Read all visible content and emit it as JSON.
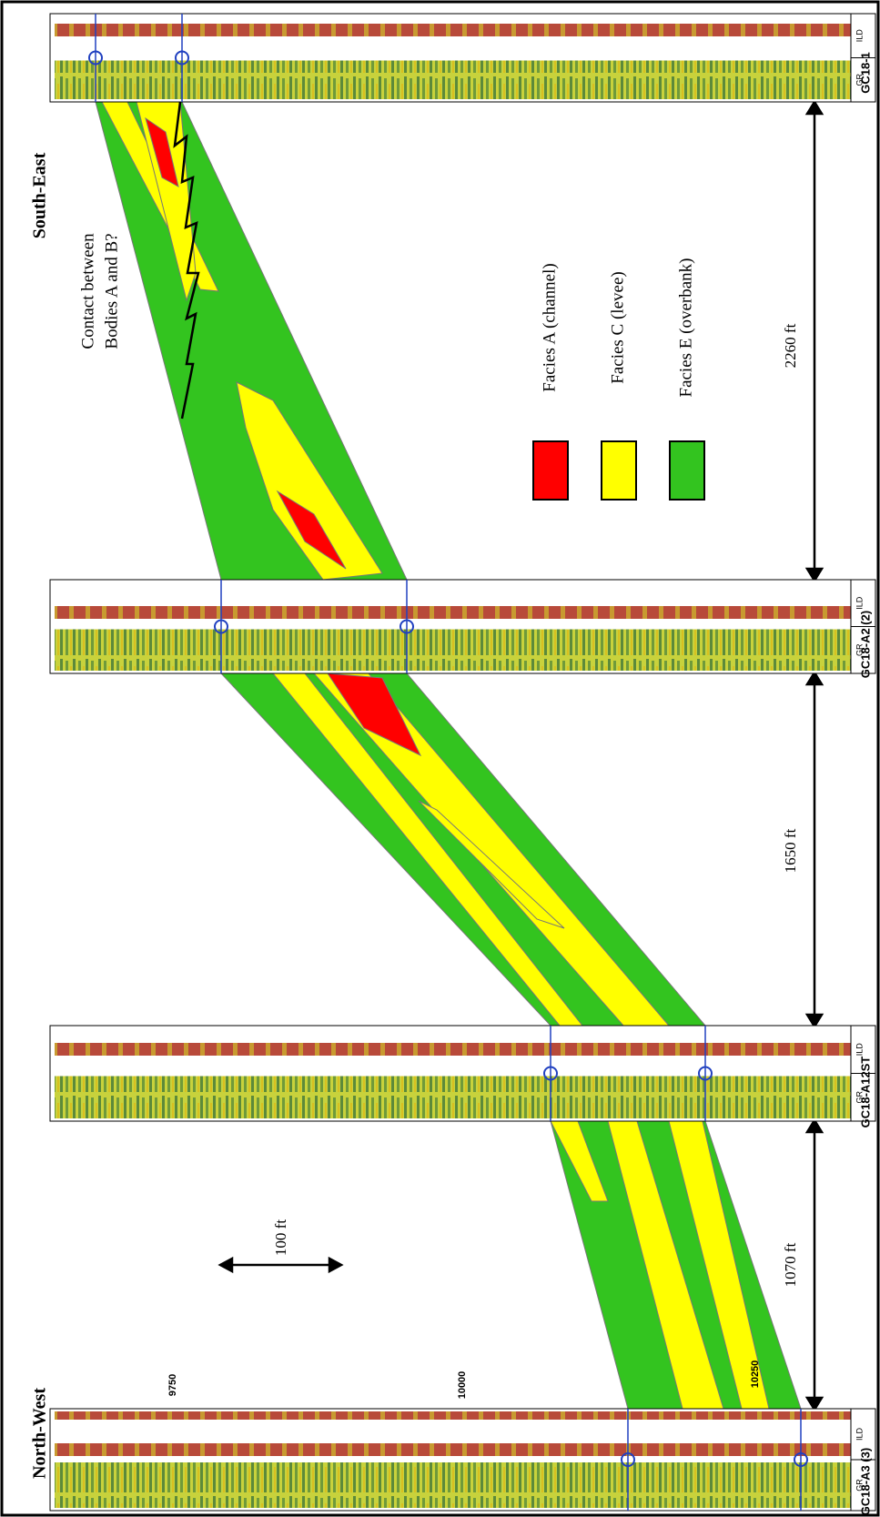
{
  "wells": [
    {
      "name": "GC18-1",
      "tracks": [
        "ILD",
        "GR"
      ]
    },
    {
      "name": "GC18-A2 (2)",
      "tracks": [
        "ILD",
        "GR"
      ]
    },
    {
      "name": "GC18-A12ST",
      "tracks": [
        "ILD",
        "GR"
      ]
    },
    {
      "name": "GC18-A3 (3)",
      "tracks": [
        "ILD",
        "GR"
      ]
    }
  ],
  "regions": {
    "south_east": "South-East",
    "north_west": "North-West"
  },
  "annotation": [
    "Contact between",
    "Bodies A and B?"
  ],
  "legend": [
    "Facies A (channel)",
    "Facies C (levee)",
    "Facies E (overbank)"
  ],
  "distances": [
    "2260 ft",
    "1650 ft",
    "1070 ft"
  ],
  "scale": "100 ft",
  "depths": [
    9750,
    10000,
    10250
  ]
}
